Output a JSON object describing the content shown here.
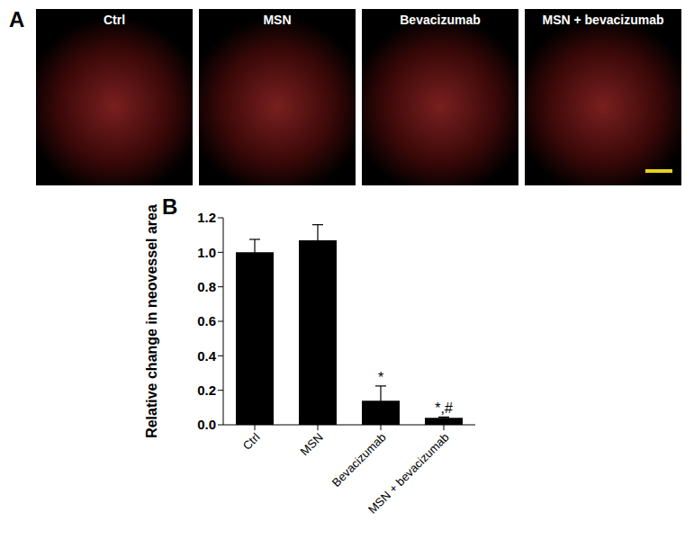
{
  "figure": {
    "panel_labels": [
      "A",
      "B"
    ],
    "image_titles": [
      "Ctrl",
      "MSN",
      "Bevacizumab",
      "MSN + bevacizumab"
    ]
  },
  "chart_data": {
    "type": "bar",
    "categories": [
      "Ctrl",
      "MSN",
      "Bevacizumab",
      "MSN + bevacizumab"
    ],
    "values": [
      1.0,
      1.07,
      0.14,
      0.04
    ],
    "errors": [
      0.075,
      0.09,
      0.085,
      0.005
    ],
    "annotations": [
      null,
      null,
      "*",
      "*,#"
    ],
    "color": "#000000",
    "y_label": "Relative change in neovessel area",
    "ylim": [
      0,
      1.2
    ],
    "yticks": [
      {
        "value": 0,
        "label": "0.0"
      },
      0.2,
      0.4,
      0.6,
      0.8,
      {
        "value": 1,
        "label": "1.0"
      },
      1.2
    ],
    "grid": false
  }
}
